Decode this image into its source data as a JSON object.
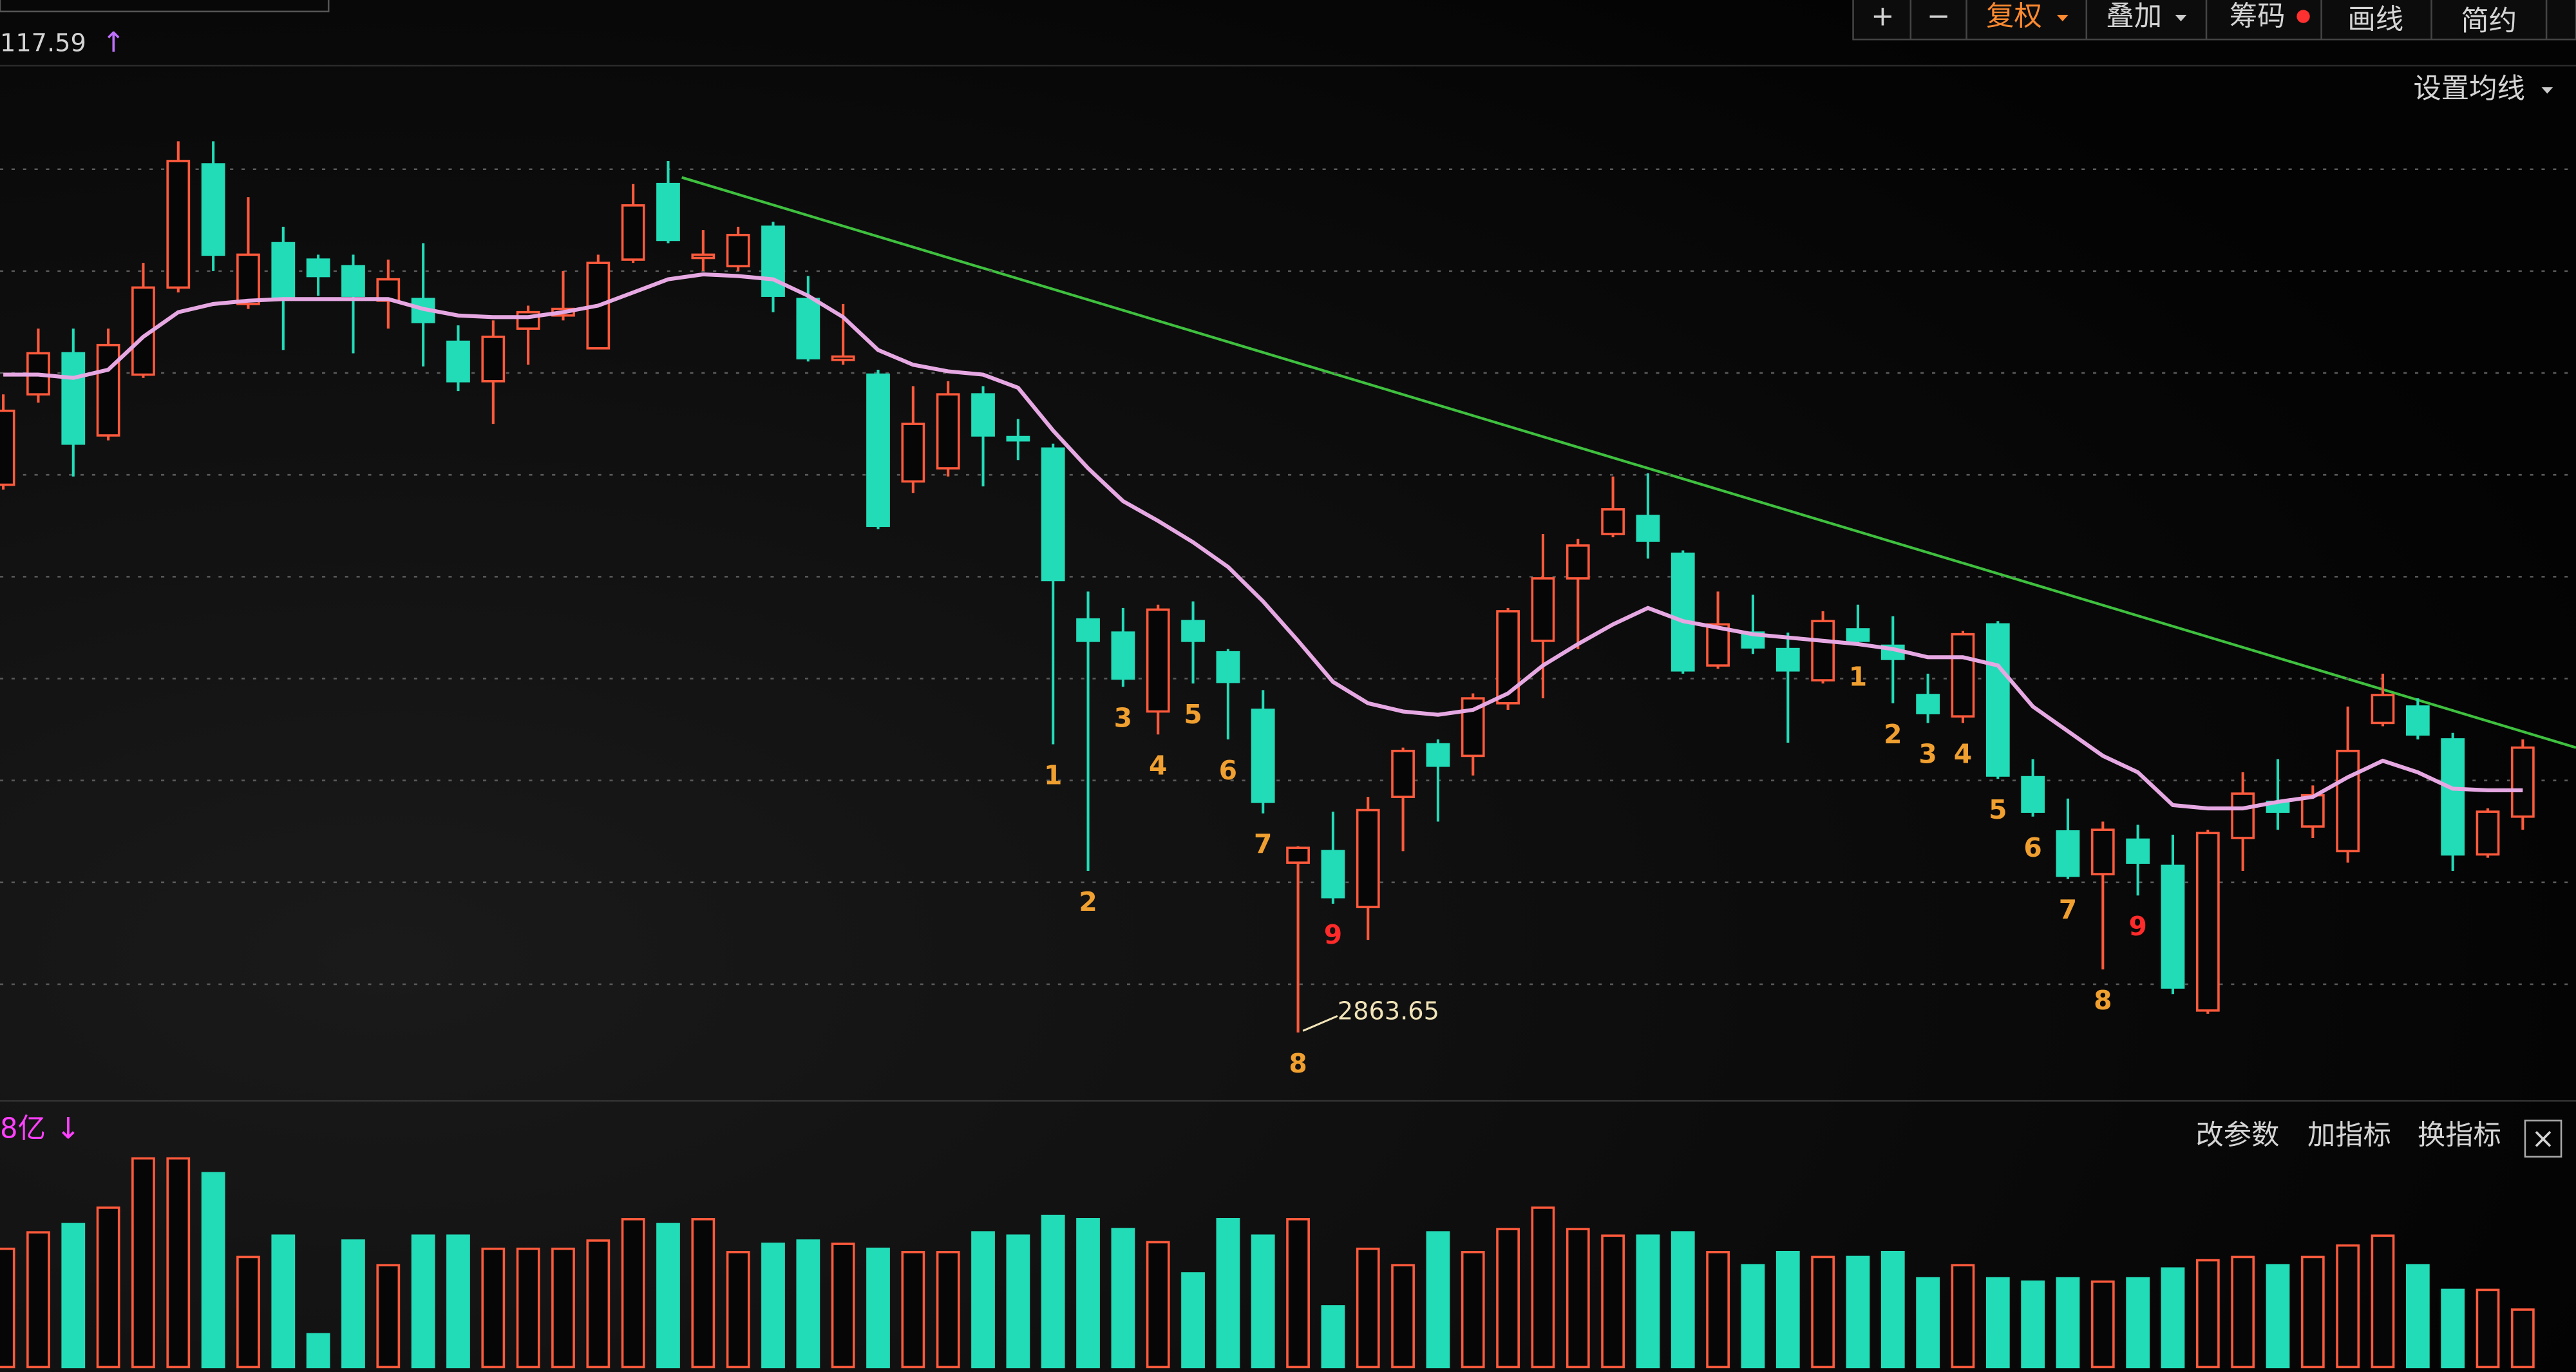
{
  "header": {
    "price": "117.59",
    "arrow": "↑"
  },
  "toolbar": [
    "+",
    "−",
    "复权",
    "叠加",
    "筹码",
    "画线",
    "简约"
  ],
  "ma_settings": "设置均线",
  "indicator_panel": {
    "label": "8亿",
    "arrow": "↓",
    "buttons": [
      "改参数",
      "加指标",
      "换指标"
    ],
    "close": "×"
  },
  "chart_data": {
    "type": "candlestick",
    "open": [
      3197,
      3252,
      3277,
      3227,
      3264,
      3317,
      3392,
      3307,
      3344,
      3334,
      3330,
      3309,
      3310,
      3284,
      3260,
      3292,
      3300,
      3280,
      3334,
      3380,
      3335,
      3330,
      3354,
      3310,
      3273,
      3264,
      3199,
      3207,
      3252,
      3226,
      3219,
      3115,
      3107,
      3059,
      3114,
      3095,
      3060,
      2967,
      2974,
      2940,
      3007,
      3039,
      3032,
      3064,
      3102,
      3140,
      3167,
      3178,
      3155,
      3087,
      3107,
      3097,
      3078,
      3109,
      3099,
      3069,
      3056,
      3112,
      3019,
      2986,
      2960,
      2981,
      2965,
      2877,
      2982,
      3004,
      2989,
      2974,
      3052,
      3062,
      3042,
      2972,
      2995
    ],
    "high": [
      3252,
      3292,
      3292,
      3292,
      3332,
      3406,
      3406,
      3372,
      3354,
      3337,
      3337,
      3334,
      3344,
      3294,
      3297,
      3306,
      3327,
      3337,
      3380,
      3394,
      3352,
      3354,
      3357,
      3324,
      3307,
      3267,
      3257,
      3260,
      3257,
      3237,
      3222,
      3132,
      3122,
      3124,
      3126,
      3097,
      3072,
      2977,
      2998,
      3007,
      3037,
      3042,
      3070,
      3122,
      3167,
      3164,
      3202,
      3204,
      3157,
      3132,
      3130,
      3107,
      3120,
      3124,
      3117,
      3082,
      3108,
      3114,
      3030,
      3006,
      2992,
      2990,
      2984,
      2987,
      3022,
      3030,
      3014,
      3062,
      3082,
      3067,
      3046,
      3000,
      3042
    ],
    "low": [
      3194,
      3247,
      3202,
      3224,
      3262,
      3314,
      3327,
      3304,
      3279,
      3312,
      3277,
      3292,
      3269,
      3254,
      3234,
      3270,
      3297,
      3280,
      3332,
      3344,
      3327,
      3327,
      3302,
      3272,
      3270,
      3170,
      3192,
      3202,
      3196,
      3212,
      3039,
      2962,
      3074,
      3045,
      3076,
      3042,
      2997,
      2863.65,
      2942,
      2920,
      2974,
      2992,
      3020,
      3060,
      3067,
      3097,
      3165,
      3152,
      3082,
      3085,
      3094,
      3040,
      3076,
      3099,
      3064,
      3052,
      3052,
      3018,
      2995,
      2957,
      2902,
      2947,
      2887,
      2875,
      2962,
      2987,
      2982,
      2967,
      3050,
      3042,
      2962,
      2970,
      2987
    ],
    "close": [
      3242,
      3277,
      3222,
      3282,
      3317,
      3394,
      3337,
      3337,
      3310,
      3324,
      3312,
      3322,
      3296,
      3260,
      3287,
      3302,
      3304,
      3332,
      3367,
      3346,
      3337,
      3349,
      3312,
      3274,
      3275,
      3172,
      3234,
      3252,
      3227,
      3224,
      3139,
      3102,
      3079,
      3121,
      3102,
      3077,
      3004,
      2976,
      2946,
      2999,
      3035,
      3026,
      3067,
      3120,
      3140,
      3160,
      3182,
      3163,
      3084,
      3112,
      3098,
      3084,
      3114,
      3102,
      3091,
      3058,
      3106,
      3020,
      2998,
      2959,
      2987,
      2967,
      2891,
      2985,
      3009,
      2998,
      3008,
      3035,
      3069,
      3045,
      2972,
      2998,
      3037
    ],
    "ma": [
      3264,
      3264,
      3262,
      3267,
      3287,
      3302,
      3307,
      3309,
      3310,
      3310,
      3310,
      3310,
      3304,
      3300,
      3299,
      3299,
      3302,
      3306,
      3314,
      3322,
      3325,
      3324,
      3322,
      3312,
      3299,
      3279,
      3270,
      3266,
      3264,
      3256,
      3230,
      3207,
      3187,
      3175,
      3162,
      3147,
      3126,
      3102,
      3077,
      3064,
      3059,
      3057,
      3060,
      3070,
      3087,
      3100,
      3112,
      3122,
      3114,
      3110,
      3106,
      3104,
      3102,
      3100,
      3097,
      3092,
      3092,
      3087,
      3062,
      3047,
      3032,
      3022,
      3002,
      3000,
      3000,
      3004,
      3007,
      3019,
      3029,
      3022,
      3012,
      3011,
      3011
    ],
    "volume": [
      72,
      82,
      87,
      97,
      127,
      127,
      118,
      67,
      80,
      20,
      77,
      62,
      80,
      80,
      72,
      72,
      72,
      77,
      90,
      87,
      90,
      70,
      75,
      77,
      75,
      72,
      70,
      70,
      82,
      80,
      92,
      90,
      84,
      76,
      57,
      90,
      80,
      90,
      37,
      72,
      62,
      82,
      70,
      84,
      97,
      84,
      80,
      80,
      82,
      70,
      62,
      70,
      67,
      67,
      70,
      54,
      62,
      54,
      52,
      54,
      52,
      54,
      60,
      65,
      67,
      62,
      67,
      74,
      80,
      62,
      47,
      47,
      35
    ],
    "td_labels": [
      null,
      null,
      null,
      null,
      null,
      null,
      null,
      null,
      null,
      null,
      null,
      null,
      null,
      null,
      null,
      null,
      null,
      null,
      null,
      null,
      null,
      null,
      null,
      null,
      null,
      null,
      null,
      null,
      null,
      null,
      {
        "text": "1",
        "color": "#f0a030"
      },
      {
        "text": "2",
        "color": "#f0a030"
      },
      {
        "text": "3",
        "color": "#f0a030"
      },
      {
        "text": "4",
        "color": "#f0a030"
      },
      {
        "text": "5",
        "color": "#f0a030"
      },
      {
        "text": "6",
        "color": "#f0a030"
      },
      {
        "text": "7",
        "color": "#f0a030"
      },
      {
        "text": "8",
        "color": "#f0a030"
      },
      {
        "text": "9",
        "color": "#ff2a2a"
      },
      null,
      null,
      null,
      null,
      null,
      null,
      null,
      null,
      null,
      null,
      null,
      null,
      null,
      null,
      {
        "text": "1",
        "color": "#f0a030"
      },
      {
        "text": "2",
        "color": "#f0a030"
      },
      {
        "text": "3",
        "color": "#f0a030"
      },
      {
        "text": "4",
        "color": "#f0a030"
      },
      {
        "text": "5",
        "color": "#f0a030"
      },
      {
        "text": "6",
        "color": "#f0a030"
      },
      {
        "text": "7",
        "color": "#f0a030"
      },
      {
        "text": "8",
        "color": "#f0a030"
      },
      {
        "text": "9",
        "color": "#ff2a2a"
      },
      null,
      null,
      null,
      null,
      null,
      null,
      null,
      null,
      null,
      null,
      null
    ],
    "up_color": "#ff5a3c",
    "down_color": "#22dcb8",
    "ma_color": "#e6a8e2",
    "annotation_color": "#f2e4b8",
    "ylim": [
      2827,
      3427
    ],
    "yticks": [
      2893,
      2955,
      3017,
      3079,
      3141,
      3203,
      3265,
      3327,
      3389
    ],
    "grid": true,
    "volume_ylim": [
      0,
      130
    ]
  }
}
